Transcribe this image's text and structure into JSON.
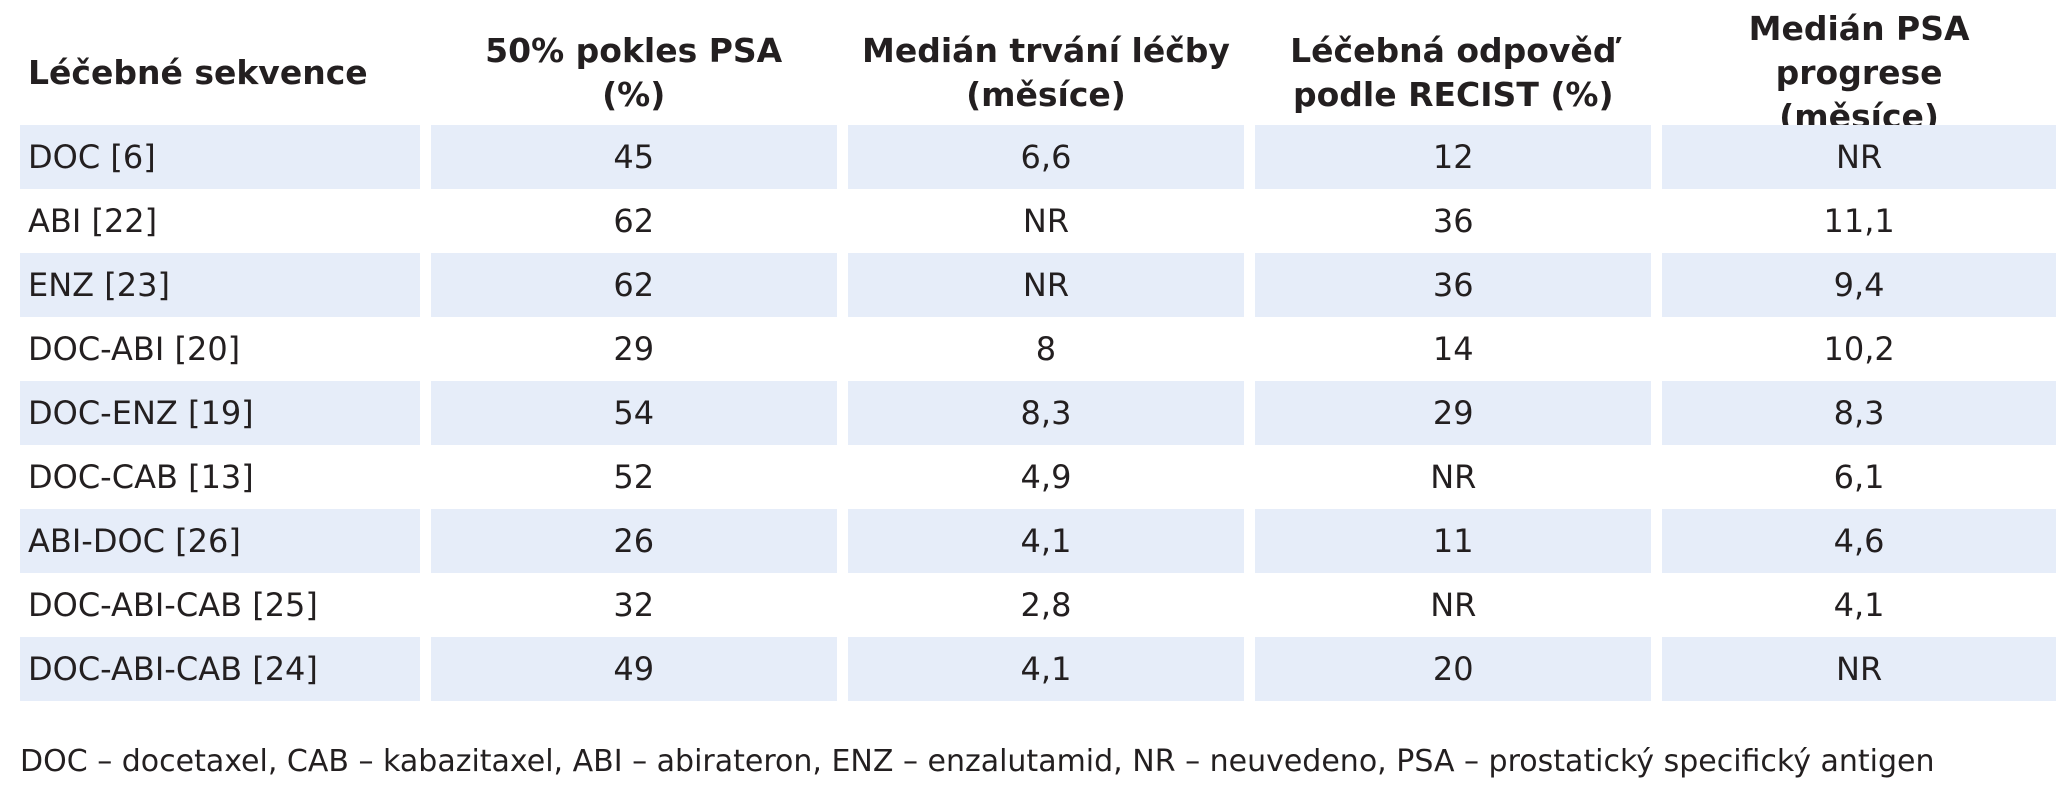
{
  "table": {
    "headers": [
      "Léčebné sekvence",
      "50% pokles PSA\n(%)",
      "Medián trvání léčby\n(měsíce)",
      "Léčebná odpověď\npodle RECIST (%)",
      "Medián PSA progrese\n(měsíce)"
    ],
    "rows": [
      [
        "DOC [6]",
        "45",
        "6,6",
        "12",
        "NR"
      ],
      [
        "ABI [22]",
        "62",
        "NR",
        "36",
        "11,1"
      ],
      [
        "ENZ [23]",
        "62",
        "NR",
        "36",
        "9,4"
      ],
      [
        "DOC-ABI [20]",
        "29",
        "8",
        "14",
        "10,2"
      ],
      [
        "DOC-ENZ [19]",
        "54",
        "8,3",
        "29",
        "8,3"
      ],
      [
        "DOC-CAB [13]",
        "52",
        "4,9",
        "NR",
        "6,1"
      ],
      [
        "ABI-DOC [26]",
        "26",
        "4,1",
        "11",
        "4,6"
      ],
      [
        "DOC-ABI-CAB [25]",
        "32",
        "2,8",
        "NR",
        "4,1"
      ],
      [
        "DOC-ABI-CAB [24]",
        "49",
        "4,1",
        "20",
        "NR"
      ]
    ],
    "row_shade_color": "#e6edf9"
  },
  "footnote": "DOC – docetaxel, CAB – kabazitaxel, ABI – abirateron, ENZ – enzalutamid, NR – neuvedeno, PSA – prostatický specifický antigen"
}
